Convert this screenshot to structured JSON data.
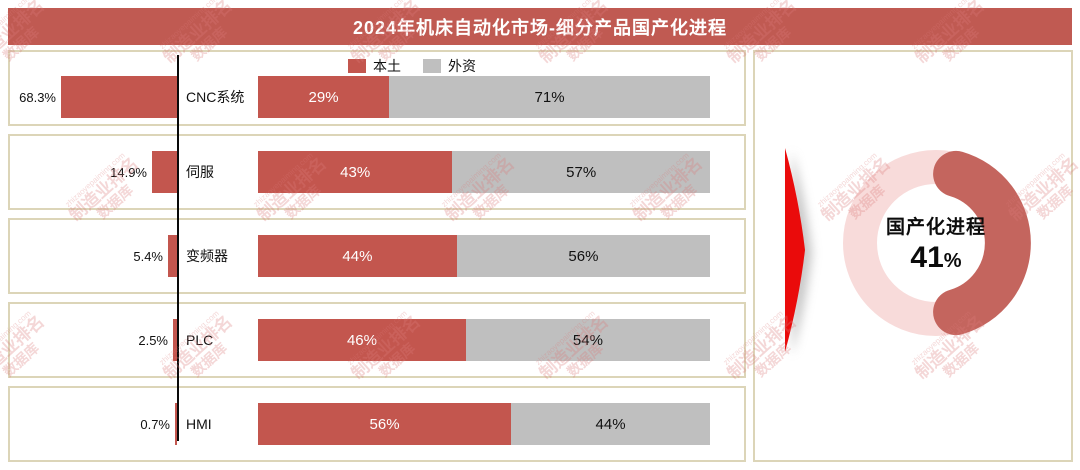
{
  "title": "2024年机床自动化市场-细分产品国产化进程",
  "legend": {
    "domestic": "本土",
    "foreign": "外资"
  },
  "colors": {
    "header_bg": "#c05a52",
    "domestic_red": "#c3564e",
    "foreign_gray": "#bfbfbf",
    "panel_border": "#dcd5b8",
    "donut_track": "#f8dbda",
    "donut_arc": "#c4655e",
    "arrow_red": "#ea0b0b",
    "axis_black": "#0a0a0a",
    "watermark_red": "#dd9090"
  },
  "rows": [
    {
      "category": "CNC系统",
      "share": 68.3,
      "share_label": "68.3%",
      "domestic": 29,
      "foreign": 71,
      "domestic_label": "29%",
      "foreign_label": "71%"
    },
    {
      "category": "伺服",
      "share": 14.9,
      "share_label": "14.9%",
      "domestic": 43,
      "foreign": 57,
      "domestic_label": "43%",
      "foreign_label": "57%"
    },
    {
      "category": "变频器",
      "share": 5.4,
      "share_label": "5.4%",
      "domestic": 44,
      "foreign": 56,
      "domestic_label": "44%",
      "foreign_label": "56%"
    },
    {
      "category": "PLC",
      "share": 2.5,
      "share_label": "2.5%",
      "domestic": 46,
      "foreign": 54,
      "domestic_label": "46%",
      "foreign_label": "54%"
    },
    {
      "category": "HMI",
      "share": 0.7,
      "share_label": "0.7%",
      "domestic": 56,
      "foreign": 44,
      "domestic_label": "56%",
      "foreign_label": "44%"
    }
  ],
  "donut": {
    "label": "国产化进程",
    "value": 41,
    "value_number": "41",
    "unit": "%"
  },
  "watermark": {
    "url": "zhizaoyepaiming.com",
    "brand": "制造业排名",
    "suffix": "数据库"
  },
  "chart_data": [
    {
      "type": "bar",
      "orientation": "horizontal",
      "title": "",
      "categories": [
        "CNC系统",
        "伺服",
        "变频器",
        "PLC",
        "HMI"
      ],
      "values": [
        68.3,
        14.9,
        5.4,
        2.5,
        0.7
      ],
      "labels": [
        "68.3%",
        "14.9%",
        "5.4%",
        "2.5%",
        "0.7%"
      ],
      "unit": "%",
      "grid": false,
      "legend_position": "none"
    },
    {
      "type": "bar",
      "orientation": "horizontal",
      "stacked": true,
      "title": "",
      "categories": [
        "CNC系统",
        "伺服",
        "变频器",
        "PLC",
        "HMI"
      ],
      "series": [
        {
          "name": "本土",
          "color": "#c3564e",
          "values": [
            29,
            43,
            44,
            46,
            56
          ]
        },
        {
          "name": "外资",
          "color": "#bfbfbf",
          "values": [
            71,
            57,
            56,
            54,
            44
          ]
        }
      ],
      "xlim": [
        0,
        100
      ],
      "unit": "%",
      "grid": false,
      "legend_position": "top"
    },
    {
      "type": "pie",
      "donut": true,
      "title": "国产化进程",
      "labels": [
        "国产化进程"
      ],
      "values": [
        41
      ],
      "unit": "%",
      "center_text": "国产化进程 41%"
    }
  ]
}
